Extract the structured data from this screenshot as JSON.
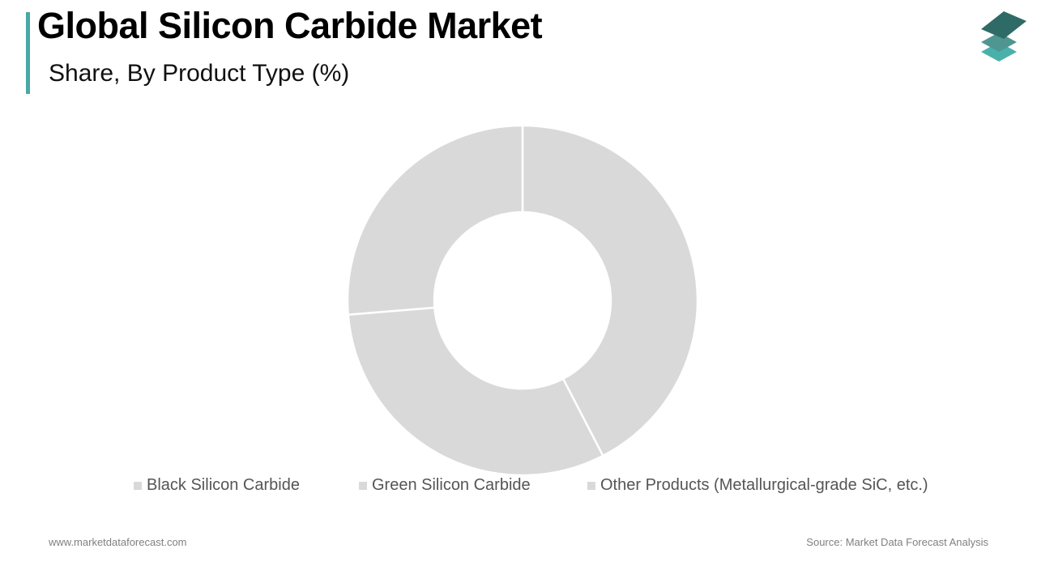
{
  "header": {
    "title": "Global Silicon Carbide Market",
    "subtitle": "Share, By Product Type (%)",
    "accent_color": "#4aa8a4"
  },
  "logo": {
    "icon": "stacked-layers-icon",
    "colors": [
      "#2f6b66",
      "#4f9590",
      "#4ab0aa"
    ]
  },
  "legend": {
    "items": [
      {
        "label": "Black Silicon Carbide",
        "color": "#d9d9d9"
      },
      {
        "label": "Green Silicon Carbide",
        "color": "#d9d9d9"
      },
      {
        "label": "Other Products (Metallurgical-grade SiC, etc.)",
        "color": "#d9d9d9"
      }
    ]
  },
  "footer": {
    "website": "www.marketdataforecast.com",
    "source": "Source: Market Data Forecast Analysis"
  },
  "chart_data": {
    "type": "pie",
    "subtype": "donut",
    "title": "Global Silicon Carbide Market",
    "subtitle": "Share, By Product Type (%)",
    "categories": [
      "Black Silicon Carbide",
      "Green Silicon Carbide",
      "Other Products (Metallurgical-grade SiC, etc.)"
    ],
    "values": [
      42.4,
      31.3,
      26.3
    ],
    "unit": "%",
    "colors": [
      "#d9d9d9",
      "#d9d9d9",
      "#d9d9d9"
    ],
    "data_labels": false,
    "legend_position": "bottom",
    "start_angle_deg": 0,
    "direction": "clockwise",
    "center": [
      645,
      371
    ],
    "outer_radius": 216,
    "inner_radius": 109
  }
}
